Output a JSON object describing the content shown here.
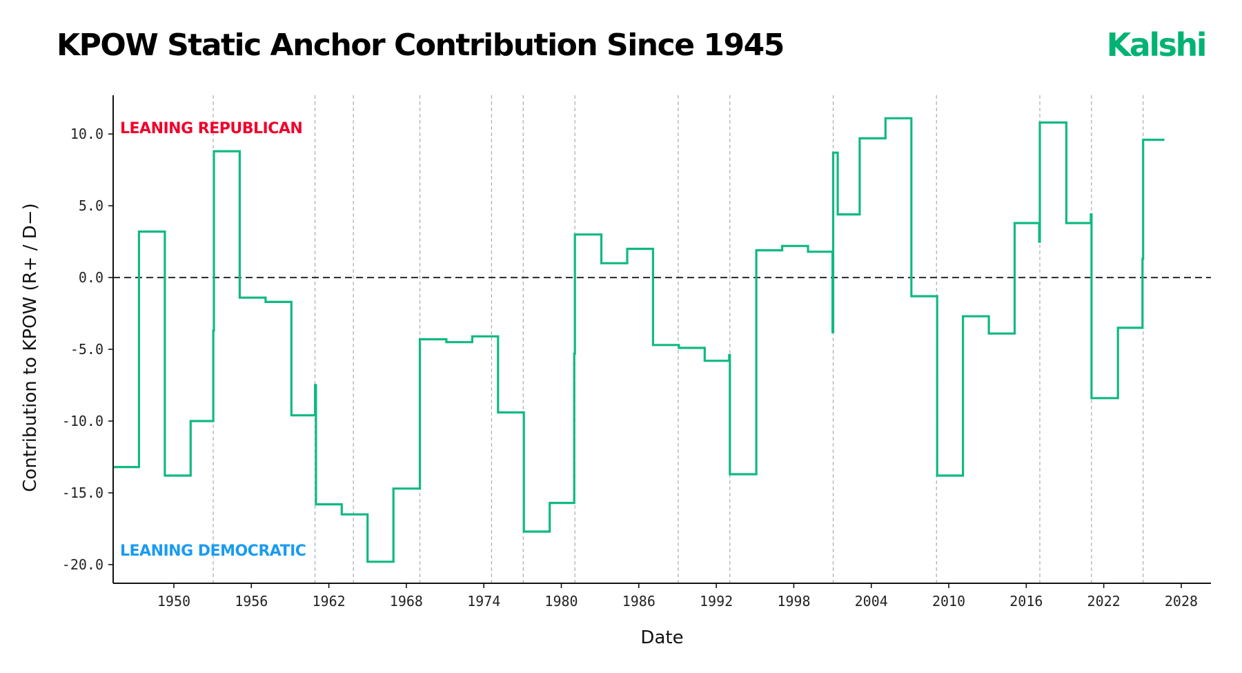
{
  "header": {
    "title": "KPOW Static Anchor Contribution Since 1945",
    "logo": "Kalshi"
  },
  "colors": {
    "line": "#10b981",
    "logo": "#00b373",
    "republican": "#f0002a",
    "democratic": "#1a9bf0",
    "zero_line": "#333333",
    "vline": "#aaaaaa"
  },
  "chart_data": {
    "type": "line",
    "step": "post",
    "xlabel": "Date",
    "ylabel": "Contribution to KPOW (R+ / D−)",
    "xlim": [
      1945.3,
      2030.3
    ],
    "ylim": [
      -21.3,
      12.7
    ],
    "x_ticks": [
      1950,
      1956,
      1962,
      1968,
      1974,
      1980,
      1986,
      1992,
      1998,
      2004,
      2010,
      2016,
      2022,
      2028
    ],
    "y_ticks": [
      10,
      5,
      0,
      -5,
      -10,
      -15,
      -20
    ],
    "y_tick_labels": [
      "10.0",
      "5.0",
      "0.0",
      "-5.0",
      "-10.0",
      "-15.0",
      "-20.0"
    ],
    "zero_line": 0,
    "event_lines": [
      1945.3,
      1953.05,
      1960.93,
      1963.9,
      1969.05,
      1974.6,
      1977.05,
      1981.05,
      1989.05,
      1993.05,
      2001.05,
      2009.05,
      2017.05,
      2021.05,
      2025.05
    ],
    "annotations": [
      {
        "text": "LEANING REPUBLICAN",
        "position": "top-left",
        "color": "#f0002a"
      },
      {
        "text": "LEANING DEMOCRATIC",
        "position": "bottom-left",
        "color": "#1a9bf0"
      }
    ],
    "series": [
      {
        "color": "#10b981",
        "points": [
          [
            1945.3,
            -13.2
          ],
          [
            1947.3,
            3.2
          ],
          [
            1949.3,
            -13.8
          ],
          [
            1951.3,
            -10.0
          ],
          [
            1953.05,
            -3.7
          ],
          [
            1953.1,
            8.8
          ],
          [
            1955.1,
            -1.4
          ],
          [
            1957.1,
            -1.7
          ],
          [
            1959.1,
            -9.6
          ],
          [
            1960.93,
            -7.5
          ],
          [
            1961.0,
            -15.8
          ],
          [
            1963.0,
            -16.5
          ],
          [
            1965.0,
            -19.8
          ],
          [
            1967.0,
            -14.7
          ],
          [
            1969.05,
            -4.3
          ],
          [
            1971.1,
            -4.5
          ],
          [
            1973.1,
            -4.1
          ],
          [
            1975.1,
            -9.4
          ],
          [
            1977.1,
            -17.7
          ],
          [
            1979.1,
            -15.7
          ],
          [
            1981.0,
            -5.3
          ],
          [
            1981.05,
            3.0
          ],
          [
            1983.1,
            1.0
          ],
          [
            1985.1,
            2.0
          ],
          [
            1987.1,
            -4.7
          ],
          [
            1989.1,
            -4.9
          ],
          [
            1991.1,
            -5.8
          ],
          [
            1993.0,
            -5.4
          ],
          [
            1993.05,
            -13.7
          ],
          [
            1995.1,
            1.9
          ],
          [
            1997.1,
            2.2
          ],
          [
            1999.1,
            1.8
          ],
          [
            2001.0,
            -3.8
          ],
          [
            2001.05,
            8.7
          ],
          [
            2001.4,
            4.4
          ],
          [
            2003.1,
            9.7
          ],
          [
            2005.1,
            11.1
          ],
          [
            2007.1,
            -1.3
          ],
          [
            2009.1,
            -13.8
          ],
          [
            2011.1,
            -2.7
          ],
          [
            2013.1,
            -3.9
          ],
          [
            2015.1,
            3.8
          ],
          [
            2017.0,
            2.5
          ],
          [
            2017.05,
            10.8
          ],
          [
            2019.1,
            3.8
          ],
          [
            2021.0,
            4.4
          ],
          [
            2021.05,
            -8.4
          ],
          [
            2023.1,
            -3.5
          ],
          [
            2025.0,
            1.3
          ],
          [
            2025.05,
            9.6
          ],
          [
            2026.7,
            9.6
          ]
        ]
      }
    ]
  },
  "logo_svg_note": ""
}
